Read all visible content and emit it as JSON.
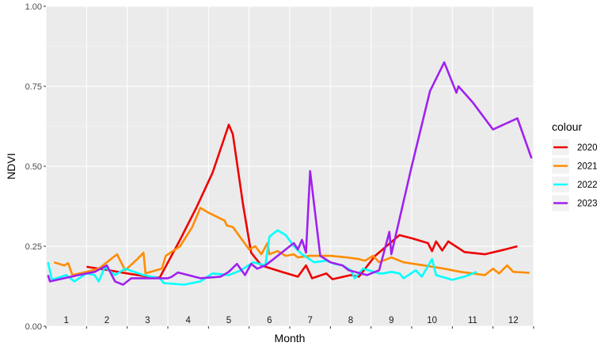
{
  "chart_data": {
    "type": "line",
    "xlabel": "Month",
    "ylabel": "NDVI",
    "x_tick_labels": [
      "1",
      "2",
      "3",
      "4",
      "5",
      "6",
      "7",
      "8",
      "9",
      "10",
      "11",
      "12"
    ],
    "x_range": [
      0.5,
      12.5
    ],
    "ylim": [
      0,
      1
    ],
    "y_ticks": [
      "0.00",
      "0.25",
      "0.50",
      "0.75",
      "1.00"
    ],
    "grid": true,
    "legend_title": "colour",
    "legend_position": "right",
    "background": "#ebebeb",
    "series": [
      {
        "name": "2020",
        "color": "#ee0000",
        "points": [
          [
            1.5,
            0.186
          ],
          [
            2.0,
            0.176
          ],
          [
            2.5,
            0.165
          ],
          [
            3.0,
            0.155
          ],
          [
            3.3,
            0.152
          ],
          [
            3.8,
            0.27
          ],
          [
            4.2,
            0.37
          ],
          [
            4.6,
            0.48
          ],
          [
            5.0,
            0.63
          ],
          [
            5.1,
            0.6
          ],
          [
            5.35,
            0.38
          ],
          [
            5.55,
            0.23
          ],
          [
            5.8,
            0.19
          ],
          [
            6.3,
            0.17
          ],
          [
            6.7,
            0.155
          ],
          [
            6.9,
            0.19
          ],
          [
            7.05,
            0.15
          ],
          [
            7.4,
            0.165
          ],
          [
            7.55,
            0.147
          ],
          [
            8.0,
            0.16
          ],
          [
            8.2,
            0.155
          ],
          [
            8.6,
            0.22
          ],
          [
            9.2,
            0.285
          ],
          [
            9.5,
            0.275
          ],
          [
            9.9,
            0.26
          ],
          [
            10.0,
            0.235
          ],
          [
            10.1,
            0.265
          ],
          [
            10.25,
            0.237
          ],
          [
            10.4,
            0.265
          ],
          [
            10.8,
            0.232
          ],
          [
            11.3,
            0.225
          ],
          [
            11.8,
            0.24
          ],
          [
            12.1,
            0.25
          ]
        ]
      },
      {
        "name": "2021",
        "color": "#ff8c00",
        "points": [
          [
            0.7,
            0.2
          ],
          [
            0.95,
            0.19
          ],
          [
            1.05,
            0.197
          ],
          [
            1.15,
            0.16
          ],
          [
            1.5,
            0.17
          ],
          [
            1.8,
            0.18
          ],
          [
            2.05,
            0.205
          ],
          [
            2.25,
            0.225
          ],
          [
            2.45,
            0.175
          ],
          [
            2.75,
            0.21
          ],
          [
            2.9,
            0.23
          ],
          [
            2.95,
            0.165
          ],
          [
            3.35,
            0.18
          ],
          [
            3.45,
            0.22
          ],
          [
            3.8,
            0.25
          ],
          [
            4.1,
            0.31
          ],
          [
            4.3,
            0.37
          ],
          [
            4.5,
            0.355
          ],
          [
            4.9,
            0.33
          ],
          [
            4.95,
            0.315
          ],
          [
            5.1,
            0.31
          ],
          [
            5.5,
            0.24
          ],
          [
            5.65,
            0.25
          ],
          [
            5.8,
            0.225
          ],
          [
            5.95,
            0.26
          ],
          [
            6.0,
            0.225
          ],
          [
            6.2,
            0.235
          ],
          [
            6.4,
            0.22
          ],
          [
            6.6,
            0.225
          ],
          [
            6.7,
            0.215
          ],
          [
            7.0,
            0.22
          ],
          [
            7.5,
            0.22
          ],
          [
            7.9,
            0.215
          ],
          [
            8.2,
            0.21
          ],
          [
            8.35,
            0.205
          ],
          [
            8.55,
            0.22
          ],
          [
            8.7,
            0.2
          ],
          [
            9.0,
            0.215
          ],
          [
            9.3,
            0.2
          ],
          [
            9.8,
            0.19
          ],
          [
            10.3,
            0.18
          ],
          [
            10.7,
            0.17
          ],
          [
            11.0,
            0.165
          ],
          [
            11.3,
            0.16
          ],
          [
            11.5,
            0.18
          ],
          [
            11.65,
            0.165
          ],
          [
            11.85,
            0.19
          ],
          [
            12.0,
            0.17
          ],
          [
            12.4,
            0.167
          ]
        ]
      },
      {
        "name": "2022",
        "color": "#00ffff",
        "points": [
          [
            0.55,
            0.2
          ],
          [
            0.65,
            0.145
          ],
          [
            1.0,
            0.16
          ],
          [
            1.2,
            0.14
          ],
          [
            1.5,
            0.165
          ],
          [
            1.7,
            0.16
          ],
          [
            1.8,
            0.14
          ],
          [
            1.95,
            0.185
          ],
          [
            2.2,
            0.16
          ],
          [
            2.45,
            0.18
          ],
          [
            2.9,
            0.16
          ],
          [
            3.3,
            0.15
          ],
          [
            3.4,
            0.135
          ],
          [
            3.9,
            0.13
          ],
          [
            4.3,
            0.14
          ],
          [
            4.6,
            0.165
          ],
          [
            5.0,
            0.16
          ],
          [
            5.3,
            0.175
          ],
          [
            5.6,
            0.2
          ],
          [
            5.9,
            0.19
          ],
          [
            6.0,
            0.28
          ],
          [
            6.2,
            0.3
          ],
          [
            6.4,
            0.285
          ],
          [
            6.6,
            0.25
          ],
          [
            6.8,
            0.225
          ],
          [
            7.1,
            0.2
          ],
          [
            7.4,
            0.205
          ],
          [
            7.6,
            0.195
          ],
          [
            7.8,
            0.19
          ],
          [
            8.0,
            0.175
          ],
          [
            8.1,
            0.15
          ],
          [
            8.3,
            0.18
          ],
          [
            8.7,
            0.165
          ],
          [
            8.8,
            0.165
          ],
          [
            9.0,
            0.17
          ],
          [
            9.2,
            0.165
          ],
          [
            9.3,
            0.15
          ],
          [
            9.6,
            0.175
          ],
          [
            9.75,
            0.155
          ],
          [
            10.0,
            0.21
          ],
          [
            10.1,
            0.16
          ],
          [
            10.5,
            0.145
          ],
          [
            10.8,
            0.155
          ],
          [
            11.0,
            0.165
          ],
          [
            11.1,
            0.17
          ]
        ]
      },
      {
        "name": "2023",
        "color": "#a020f0",
        "points": [
          [
            0.55,
            0.16
          ],
          [
            0.6,
            0.14
          ],
          [
            1.3,
            0.16
          ],
          [
            1.7,
            0.17
          ],
          [
            2.0,
            0.19
          ],
          [
            2.1,
            0.165
          ],
          [
            2.2,
            0.14
          ],
          [
            2.4,
            0.13
          ],
          [
            2.6,
            0.15
          ],
          [
            3.0,
            0.15
          ],
          [
            3.4,
            0.15
          ],
          [
            3.5,
            0.15
          ],
          [
            3.6,
            0.155
          ],
          [
            3.75,
            0.168
          ],
          [
            4.0,
            0.16
          ],
          [
            4.3,
            0.15
          ],
          [
            4.8,
            0.155
          ],
          [
            5.0,
            0.17
          ],
          [
            5.2,
            0.195
          ],
          [
            5.4,
            0.16
          ],
          [
            5.55,
            0.195
          ],
          [
            5.7,
            0.18
          ],
          [
            5.9,
            0.19
          ],
          [
            6.1,
            0.21
          ],
          [
            6.4,
            0.24
          ],
          [
            6.6,
            0.26
          ],
          [
            6.7,
            0.24
          ],
          [
            6.8,
            0.27
          ],
          [
            6.9,
            0.23
          ],
          [
            7.0,
            0.485
          ],
          [
            7.25,
            0.22
          ],
          [
            7.5,
            0.2
          ],
          [
            7.8,
            0.19
          ],
          [
            7.95,
            0.175
          ],
          [
            8.1,
            0.17
          ],
          [
            8.4,
            0.16
          ],
          [
            8.7,
            0.175
          ],
          [
            8.95,
            0.295
          ],
          [
            9.0,
            0.225
          ],
          [
            9.5,
            0.5
          ],
          [
            9.95,
            0.735
          ],
          [
            10.3,
            0.825
          ],
          [
            10.6,
            0.73
          ],
          [
            10.65,
            0.75
          ],
          [
            11.0,
            0.7
          ],
          [
            11.5,
            0.615
          ],
          [
            12.1,
            0.65
          ],
          [
            12.45,
            0.525
          ]
        ]
      }
    ]
  }
}
